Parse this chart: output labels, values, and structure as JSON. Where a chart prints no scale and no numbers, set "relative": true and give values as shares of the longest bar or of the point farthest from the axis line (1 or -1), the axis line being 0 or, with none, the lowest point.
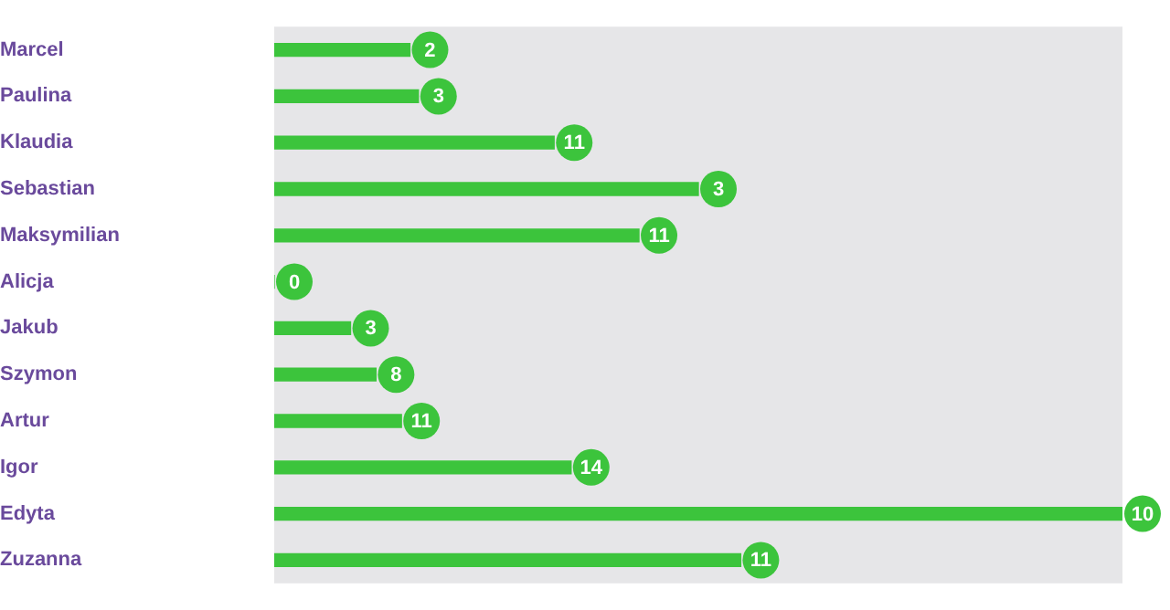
{
  "chart_data": {
    "type": "bar",
    "orientation": "horizontal",
    "relative": true,
    "categories": [
      "Marcel",
      "Paulina",
      "Klaudia",
      "Sebastian",
      "Maksymilian",
      "Alicja",
      "Jakub",
      "Szymon",
      "Artur",
      "Igor",
      "Edyta",
      "Zuzanna"
    ],
    "values": [
      0.16,
      0.17,
      0.33,
      0.5,
      0.43,
      0,
      0.09,
      0.12,
      0.15,
      0.35,
      1,
      0.55
    ],
    "color": "#3cc43c",
    "legend": false,
    "annotations": [
      {
        "text": "2",
        "x": 0.16,
        "y": "Marcel"
      },
      {
        "text": "3",
        "x": 0.17,
        "y": "Paulina"
      },
      {
        "text": "11",
        "x": 0.33,
        "y": "Klaudia"
      },
      {
        "text": "3",
        "x": 0.5,
        "y": "Sebastian"
      },
      {
        "text": "11",
        "x": 0.43,
        "y": "Maksymilian"
      },
      {
        "text": "0",
        "x": 0,
        "y": "Alicja"
      },
      {
        "text": "3",
        "x": 0.09,
        "y": "Jakub"
      },
      {
        "text": "8",
        "x": 0.12,
        "y": "Szymon"
      },
      {
        "text": "11",
        "x": 0.15,
        "y": "Artur"
      },
      {
        "text": "14",
        "x": 0.35,
        "y": "Igor"
      },
      {
        "text": "10",
        "x": 1,
        "y": "Edyta"
      },
      {
        "text": "11",
        "x": 0.55,
        "y": "Zuzanna"
      }
    ]
  }
}
